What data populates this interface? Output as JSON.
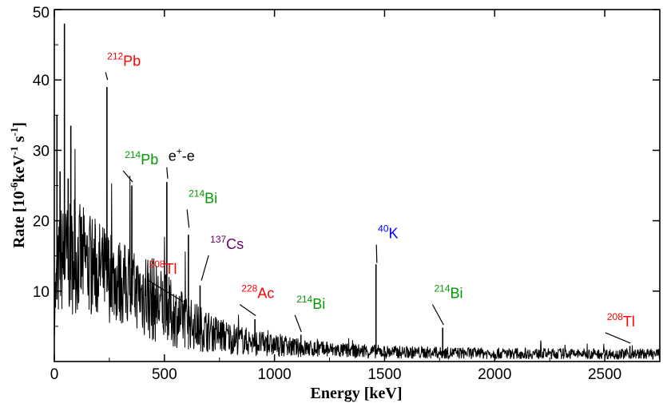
{
  "chart_data": {
    "type": "line",
    "xlabel": "Energy [keV]",
    "ylabel": {
      "base": "Rate [10",
      "exp1": "-6",
      "mid1": "keV",
      "exp2": "-1",
      "mid2": " s",
      "exp3": "-1",
      "end": "]"
    },
    "xlim": [
      0,
      2750
    ],
    "ylim": [
      0,
      50
    ],
    "x_ticks": [
      {
        "value": 0,
        "label": "0"
      },
      {
        "value": 500,
        "label": "500"
      },
      {
        "value": 1000,
        "label": "1000"
      },
      {
        "value": 1500,
        "label": "1500"
      },
      {
        "value": 2000,
        "label": "2000"
      },
      {
        "value": 2500,
        "label": "2500"
      }
    ],
    "y_ticks": [
      {
        "value": 10,
        "label": "10"
      },
      {
        "value": 20,
        "label": "20"
      },
      {
        "value": 30,
        "label": "30"
      },
      {
        "value": 40,
        "label": "40"
      },
      {
        "value": 50,
        "label": "50"
      }
    ],
    "grid": false,
    "series_color": "#000000",
    "peaks": [
      {
        "x": 12,
        "y": 35.0
      },
      {
        "x": 26,
        "y": 27.0
      },
      {
        "x": 46,
        "y": 48.0
      },
      {
        "x": 63,
        "y": 26.0
      },
      {
        "x": 75,
        "y": 33.5
      },
      {
        "x": 92,
        "y": 23.0
      },
      {
        "x": 186,
        "y": 19.0
      },
      {
        "x": 239,
        "y": 39.0
      },
      {
        "x": 295,
        "y": 15.0
      },
      {
        "x": 352,
        "y": 25.0
      },
      {
        "x": 511,
        "y": 25.5
      },
      {
        "x": 583,
        "y": 8.2
      },
      {
        "x": 609,
        "y": 18.0
      },
      {
        "x": 662,
        "y": 10.8
      },
      {
        "x": 727,
        "y": 3.5
      },
      {
        "x": 911,
        "y": 6.0
      },
      {
        "x": 969,
        "y": 3.8
      },
      {
        "x": 1120,
        "y": 3.8
      },
      {
        "x": 1238,
        "y": 2.8
      },
      {
        "x": 1461,
        "y": 13.8
      },
      {
        "x": 1764,
        "y": 4.8
      },
      {
        "x": 2204,
        "y": 1.6
      },
      {
        "x": 2614,
        "y": 2.2
      }
    ],
    "annotations": [
      {
        "sup": "212",
        "label": "Pb",
        "color": "#ff0000",
        "x": 242,
        "y": 40.0,
        "tx": 240,
        "ty": 42.0
      },
      {
        "sup": "214",
        "label": "Pb",
        "color": "#009900",
        "x": 356,
        "y": 25.5,
        "tx": 320,
        "ty": 28.0
      },
      {
        "sup": "+",
        "label": "-e",
        "prefix": "e",
        "color": "#000000",
        "x": 515,
        "y": 26.0,
        "tx": 518,
        "ty": 28.5
      },
      {
        "sup": "214",
        "label": "Bi",
        "color": "#009900",
        "x": 612,
        "y": 19.0,
        "tx": 610,
        "ty": 22.5
      },
      {
        "sup": "137",
        "label": "Cs",
        "color": "#660066",
        "x": 668,
        "y": 11.5,
        "tx": 708,
        "ty": 16.0
      },
      {
        "sup": "208",
        "label": "Tl",
        "color": "#ff0000",
        "x": 585,
        "y": 8.5,
        "tx": 430,
        "ty": 12.5
      },
      {
        "sup": "228",
        "label": "Ac",
        "color": "#ff0000",
        "x": 915,
        "y": 6.5,
        "tx": 850,
        "ty": 9.0
      },
      {
        "sup": "214",
        "label": "Bi",
        "color": "#009900",
        "x": 1122,
        "y": 4.2,
        "tx": 1100,
        "ty": 7.5
      },
      {
        "sup": "40",
        "label": "K",
        "color": "#0000ff",
        "x": 1465,
        "y": 14.0,
        "tx": 1470,
        "ty": 17.5
      },
      {
        "sup": "214",
        "label": "Bi",
        "color": "#009900",
        "x": 1768,
        "y": 5.2,
        "tx": 1725,
        "ty": 9.0
      },
      {
        "sup": "208",
        "label": "Tl",
        "color": "#ff0000",
        "x": 2617,
        "y": 2.6,
        "tx": 2510,
        "ty": 5.0
      }
    ]
  }
}
